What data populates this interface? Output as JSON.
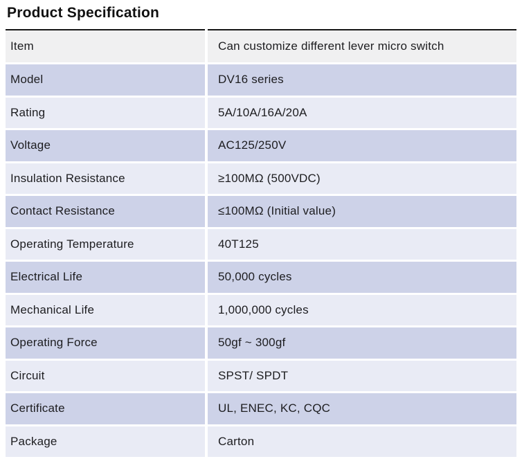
{
  "title": "Product Specification",
  "table": {
    "rows": [
      {
        "label": "Item",
        "value": "Can customize different lever micro switch"
      },
      {
        "label": "Model",
        "value": "DV16 series"
      },
      {
        "label": "Rating",
        "value": "5A/10A/16A/20A"
      },
      {
        "label": "Voltage",
        "value": "AC125/250V"
      },
      {
        "label": "Insulation Resistance",
        "value": "≥100MΩ (500VDC)"
      },
      {
        "label": "Contact Resistance",
        "value": "≤100MΩ (Initial value)"
      },
      {
        "label": "Operating Temperature",
        "value": "40T125"
      },
      {
        "label": "Electrical Life",
        "value": "50,000 cycles"
      },
      {
        "label": "Mechanical Life",
        "value": "1,000,000 cycles"
      },
      {
        "label": "Operating Force",
        "value": "50gf ~ 300gf"
      },
      {
        "label": "Circuit",
        "value": "SPST/ SPDT"
      },
      {
        "label": "Certificate",
        "value": "UL, ENEC, KC, CQC"
      },
      {
        "label": "Package",
        "value": "Carton"
      }
    ]
  },
  "colors": {
    "row_first": "#f0f0f1",
    "row_dark": "#cdd2e8",
    "row_light": "#e9ebf5",
    "border_top": "#151515"
  }
}
